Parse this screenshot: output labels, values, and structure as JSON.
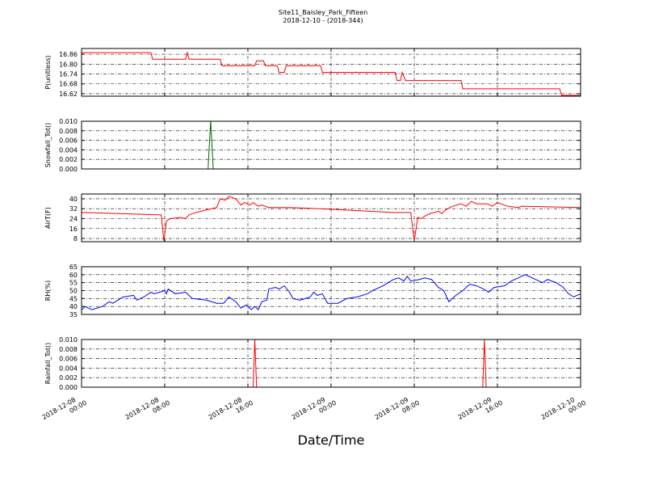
{
  "chart_data": [
    {
      "type": "line",
      "title": "Site11_Baisley_Park_Fifteen",
      "subtitle": "2018-12-10 - (2018-344)",
      "y_label": "P(unitless)",
      "color": "#ff0000",
      "grid": true,
      "xlim": [
        "2018-12-08 00:00",
        "2018-12-10 00:00"
      ],
      "xticks": [
        "2018-12-08 00:00",
        "2018-12-08 08:00",
        "2018-12-08 16:00",
        "2018-12-09 00:00",
        "2018-12-09 08:00",
        "2018-12-09 16:00",
        "2018-12-10 00:00"
      ],
      "ylim": [
        16.605,
        16.895
      ],
      "yticks": [
        16.62,
        16.68,
        16.74,
        {
          "value": 16.8,
          "label": "16.80"
        },
        16.86
      ],
      "x": [
        "2018-12-08 00:00",
        "2018-12-08 06:40",
        "2018-12-08 06:50",
        "2018-12-08 10:00",
        "2018-12-08 10:10",
        "2018-12-08 10:20",
        "2018-12-08 13:20",
        "2018-12-08 13:30",
        "2018-12-08 16:40",
        "2018-12-08 16:50",
        "2018-12-08 17:30",
        "2018-12-08 17:40",
        "2018-12-08 18:50",
        "2018-12-08 19:00",
        "2018-12-08 19:30",
        "2018-12-08 19:40",
        "2018-12-08 23:00",
        "2018-12-08 23:10",
        "2018-12-09 06:10",
        "2018-12-09 06:20",
        "2018-12-09 06:40",
        "2018-12-09 06:50",
        "2018-12-09 07:10",
        "2018-12-09 12:30",
        "2018-12-09 12:40",
        "2018-12-09 22:00",
        "2018-12-09 22:10",
        "2018-12-10 00:00"
      ],
      "values": [
        16.87,
        16.87,
        16.83,
        16.83,
        16.87,
        16.83,
        16.83,
        16.79,
        16.79,
        16.82,
        16.82,
        16.79,
        16.79,
        16.75,
        16.75,
        16.79,
        16.79,
        16.75,
        16.75,
        16.7,
        16.7,
        16.75,
        16.7,
        16.7,
        16.65,
        16.65,
        16.61,
        16.61
      ]
    },
    {
      "type": "line",
      "y_label": "Snowfall_Tot()",
      "color": "#006400",
      "grid": true,
      "xlim": [
        "2018-12-08 00:00",
        "2018-12-10 00:00"
      ],
      "xticks": [
        "2018-12-08 00:00",
        "2018-12-08 08:00",
        "2018-12-08 16:00",
        "2018-12-09 00:00",
        "2018-12-09 08:00",
        "2018-12-09 16:00",
        "2018-12-10 00:00"
      ],
      "ylim": [
        0,
        0.01
      ],
      "yticks": [
        {
          "value": 0,
          "label": "0.000"
        },
        {
          "value": 0.002,
          "label": "0.002"
        },
        {
          "value": 0.004,
          "label": "0.004"
        },
        {
          "value": 0.006,
          "label": "0.006"
        },
        {
          "value": 0.008,
          "label": "0.008"
        },
        {
          "value": 0.01,
          "label": "0.010"
        }
      ],
      "x": [
        "2018-12-08 00:00",
        "2018-12-08 12:10",
        "2018-12-08 12:25",
        "2018-12-08 12:40",
        "2018-12-10 00:00"
      ],
      "values": [
        0,
        0,
        0.01,
        0,
        0
      ]
    },
    {
      "type": "line",
      "y_label": "AirT(F)",
      "color": "#ff0000",
      "grid": true,
      "xlim": [
        "2018-12-08 00:00",
        "2018-12-10 00:00"
      ],
      "xticks": [
        "2018-12-08 00:00",
        "2018-12-08 08:00",
        "2018-12-08 16:00",
        "2018-12-09 00:00",
        "2018-12-09 08:00",
        "2018-12-09 16:00",
        "2018-12-10 00:00"
      ],
      "ylim": [
        5.4,
        43.9
      ],
      "yticks": [
        8,
        16,
        24,
        32,
        40
      ],
      "x": [
        "2018-12-08 00:00",
        "2018-12-08 04:00",
        "2018-12-08 07:40",
        "2018-12-08 07:55",
        "2018-12-08 08:10",
        "2018-12-08 08:30",
        "2018-12-08 09:30",
        "2018-12-08 10:00",
        "2018-12-08 10:20",
        "2018-12-08 11:00",
        "2018-12-08 12:00",
        "2018-12-08 13:00",
        "2018-12-08 13:20",
        "2018-12-08 13:50",
        "2018-12-08 14:10",
        "2018-12-08 14:50",
        "2018-12-08 15:20",
        "2018-12-08 15:40",
        "2018-12-08 16:10",
        "2018-12-08 16:30",
        "2018-12-08 17:00",
        "2018-12-08 17:20",
        "2018-12-08 18:00",
        "2018-12-08 20:00",
        "2018-12-08 23:00",
        "2018-12-09 06:00",
        "2018-12-09 07:40",
        "2018-12-09 08:00",
        "2018-12-09 08:20",
        "2018-12-09 08:40",
        "2018-12-09 09:00",
        "2018-12-09 09:30",
        "2018-12-09 10:20",
        "2018-12-09 10:40",
        "2018-12-09 11:00",
        "2018-12-09 11:40",
        "2018-12-09 12:30",
        "2018-12-09 13:00",
        "2018-12-09 13:30",
        "2018-12-09 14:00",
        "2018-12-09 15:00",
        "2018-12-09 15:30",
        "2018-12-09 16:00",
        "2018-12-09 17:00",
        "2018-12-09 18:00",
        "2018-12-09 18:20",
        "2018-12-10 00:00"
      ],
      "values": [
        29,
        28,
        27,
        6,
        22,
        24,
        25,
        24,
        27,
        29,
        31,
        33,
        40,
        39,
        42,
        40,
        35,
        37,
        35,
        37,
        34,
        35,
        33,
        33,
        32,
        29,
        29,
        6,
        25,
        24,
        26,
        28,
        30,
        28,
        31,
        34,
        36,
        34,
        38,
        36,
        36,
        34,
        37,
        34,
        33,
        34,
        33
      ]
    },
    {
      "type": "line",
      "y_label": "RH(%)",
      "color": "#0000ff",
      "grid": true,
      "xlim": [
        "2018-12-08 00:00",
        "2018-12-10 00:00"
      ],
      "xticks": [
        "2018-12-08 00:00",
        "2018-12-08 08:00",
        "2018-12-08 16:00",
        "2018-12-09 00:00",
        "2018-12-09 08:00",
        "2018-12-09 16:00",
        "2018-12-10 00:00"
      ],
      "ylim": [
        35,
        65
      ],
      "yticks": [
        35,
        40,
        45,
        50,
        55,
        60,
        65
      ],
      "x": [
        "2018-12-08 00:00",
        "2018-12-08 00:20",
        "2018-12-08 01:00",
        "2018-12-08 02:00",
        "2018-12-08 02:40",
        "2018-12-08 03:00",
        "2018-12-08 04:00",
        "2018-12-08 05:00",
        "2018-12-08 05:20",
        "2018-12-08 06:00",
        "2018-12-08 06:40",
        "2018-12-08 07:00",
        "2018-12-08 08:00",
        "2018-12-08 08:10",
        "2018-12-08 08:20",
        "2018-12-08 09:00",
        "2018-12-08 10:00",
        "2018-12-08 10:40",
        "2018-12-08 12:00",
        "2018-12-08 13:00",
        "2018-12-08 13:40",
        "2018-12-08 14:10",
        "2018-12-08 14:50",
        "2018-12-08 15:20",
        "2018-12-08 15:50",
        "2018-12-08 16:20",
        "2018-12-08 16:40",
        "2018-12-08 17:00",
        "2018-12-08 17:20",
        "2018-12-08 17:50",
        "2018-12-08 18:00",
        "2018-12-08 18:40",
        "2018-12-08 19:00",
        "2018-12-08 19:30",
        "2018-12-08 20:00",
        "2018-12-08 20:20",
        "2018-12-08 21:00",
        "2018-12-08 22:00",
        "2018-12-08 22:20",
        "2018-12-08 22:40",
        "2018-12-08 23:10",
        "2018-12-08 23:40",
        "2018-12-09 00:40",
        "2018-12-09 01:30",
        "2018-12-09 02:30",
        "2018-12-09 03:30",
        "2018-12-09 04:00",
        "2018-12-09 05:00",
        "2018-12-09 06:00",
        "2018-12-09 06:30",
        "2018-12-09 07:00",
        "2018-12-09 07:20",
        "2018-12-09 07:40",
        "2018-12-09 08:30",
        "2018-12-09 09:00",
        "2018-12-09 09:40",
        "2018-12-09 10:20",
        "2018-12-09 10:50",
        "2018-12-09 11:20",
        "2018-12-09 12:00",
        "2018-12-09 12:40",
        "2018-12-09 13:20",
        "2018-12-09 14:00",
        "2018-12-09 14:40",
        "2018-12-09 15:10",
        "2018-12-09 15:40",
        "2018-12-09 16:40",
        "2018-12-09 17:20",
        "2018-12-09 18:00",
        "2018-12-09 18:40",
        "2018-12-09 19:40",
        "2018-12-09 20:20",
        "2018-12-09 20:50",
        "2018-12-09 21:40",
        "2018-12-09 22:20",
        "2018-12-09 22:50",
        "2018-12-09 23:20",
        "2018-12-10 00:00"
      ],
      "values": [
        38,
        40,
        38,
        40,
        43,
        42,
        46,
        47,
        44,
        46,
        49,
        48,
        50,
        48,
        51,
        48,
        49,
        45,
        44,
        42,
        42,
        46,
        43,
        39,
        41,
        38,
        40,
        38,
        43,
        44,
        51,
        52,
        51,
        53,
        49,
        45,
        44,
        46,
        49,
        47,
        48,
        42,
        42,
        45,
        46,
        48,
        50,
        53,
        57,
        58,
        56,
        59,
        56,
        57,
        58,
        57,
        52,
        50,
        43,
        47,
        50,
        54,
        53,
        51,
        49,
        52,
        53,
        56,
        58,
        60,
        57,
        55,
        57,
        55,
        52,
        48,
        46,
        48
      ]
    },
    {
      "type": "line",
      "y_label": "Rainfall_Tot()",
      "x_label": "Date/Time",
      "color": "#ff0000",
      "grid": true,
      "xlim": [
        "2018-12-08 00:00",
        "2018-12-10 00:00"
      ],
      "xticks": [
        "2018-12-08 00:00",
        "2018-12-08 08:00",
        "2018-12-08 16:00",
        "2018-12-09 00:00",
        "2018-12-09 08:00",
        "2018-12-09 16:00",
        "2018-12-10 00:00"
      ],
      "ylim": [
        0,
        0.01
      ],
      "yticks": [
        {
          "value": 0,
          "label": "0.000"
        },
        {
          "value": 0.002,
          "label": "0.002"
        },
        {
          "value": 0.004,
          "label": "0.004"
        },
        {
          "value": 0.006,
          "label": "0.006"
        },
        {
          "value": 0.008,
          "label": "0.008"
        },
        {
          "value": 0.01,
          "label": "0.010"
        }
      ],
      "x": [
        "2018-12-08 00:00",
        "2018-12-08 16:30",
        "2018-12-08 16:40",
        "2018-12-08 16:50",
        "2018-12-09 14:35",
        "2018-12-09 14:45",
        "2018-12-09 14:55",
        "2018-12-10 00:00"
      ],
      "values": [
        0,
        0,
        0.01,
        0,
        0,
        0.01,
        0,
        0
      ]
    }
  ]
}
